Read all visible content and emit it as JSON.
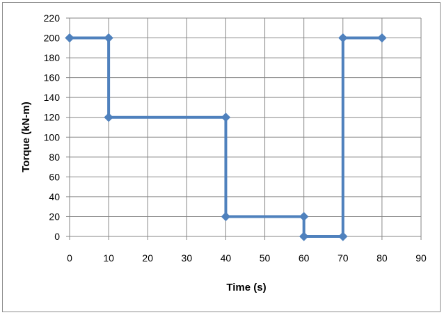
{
  "chart_data": {
    "type": "line",
    "xlabel": "Time (s)",
    "ylabel": "Torque (kN-m)",
    "xlim": [
      0,
      90
    ],
    "ylim": [
      0,
      220
    ],
    "x_ticks": [
      0,
      10,
      20,
      30,
      40,
      50,
      60,
      70,
      80,
      90
    ],
    "y_ticks": [
      0,
      20,
      40,
      60,
      80,
      100,
      120,
      140,
      160,
      180,
      200,
      220
    ],
    "grid": true,
    "legend": "none",
    "series": [
      {
        "color": "#4f81bd",
        "marker": "diamond",
        "x": [
          0,
          10,
          10,
          40,
          40,
          60,
          60,
          70,
          70,
          80
        ],
        "y": [
          200,
          200,
          120,
          120,
          20,
          20,
          0,
          0,
          200,
          200
        ]
      }
    ]
  }
}
